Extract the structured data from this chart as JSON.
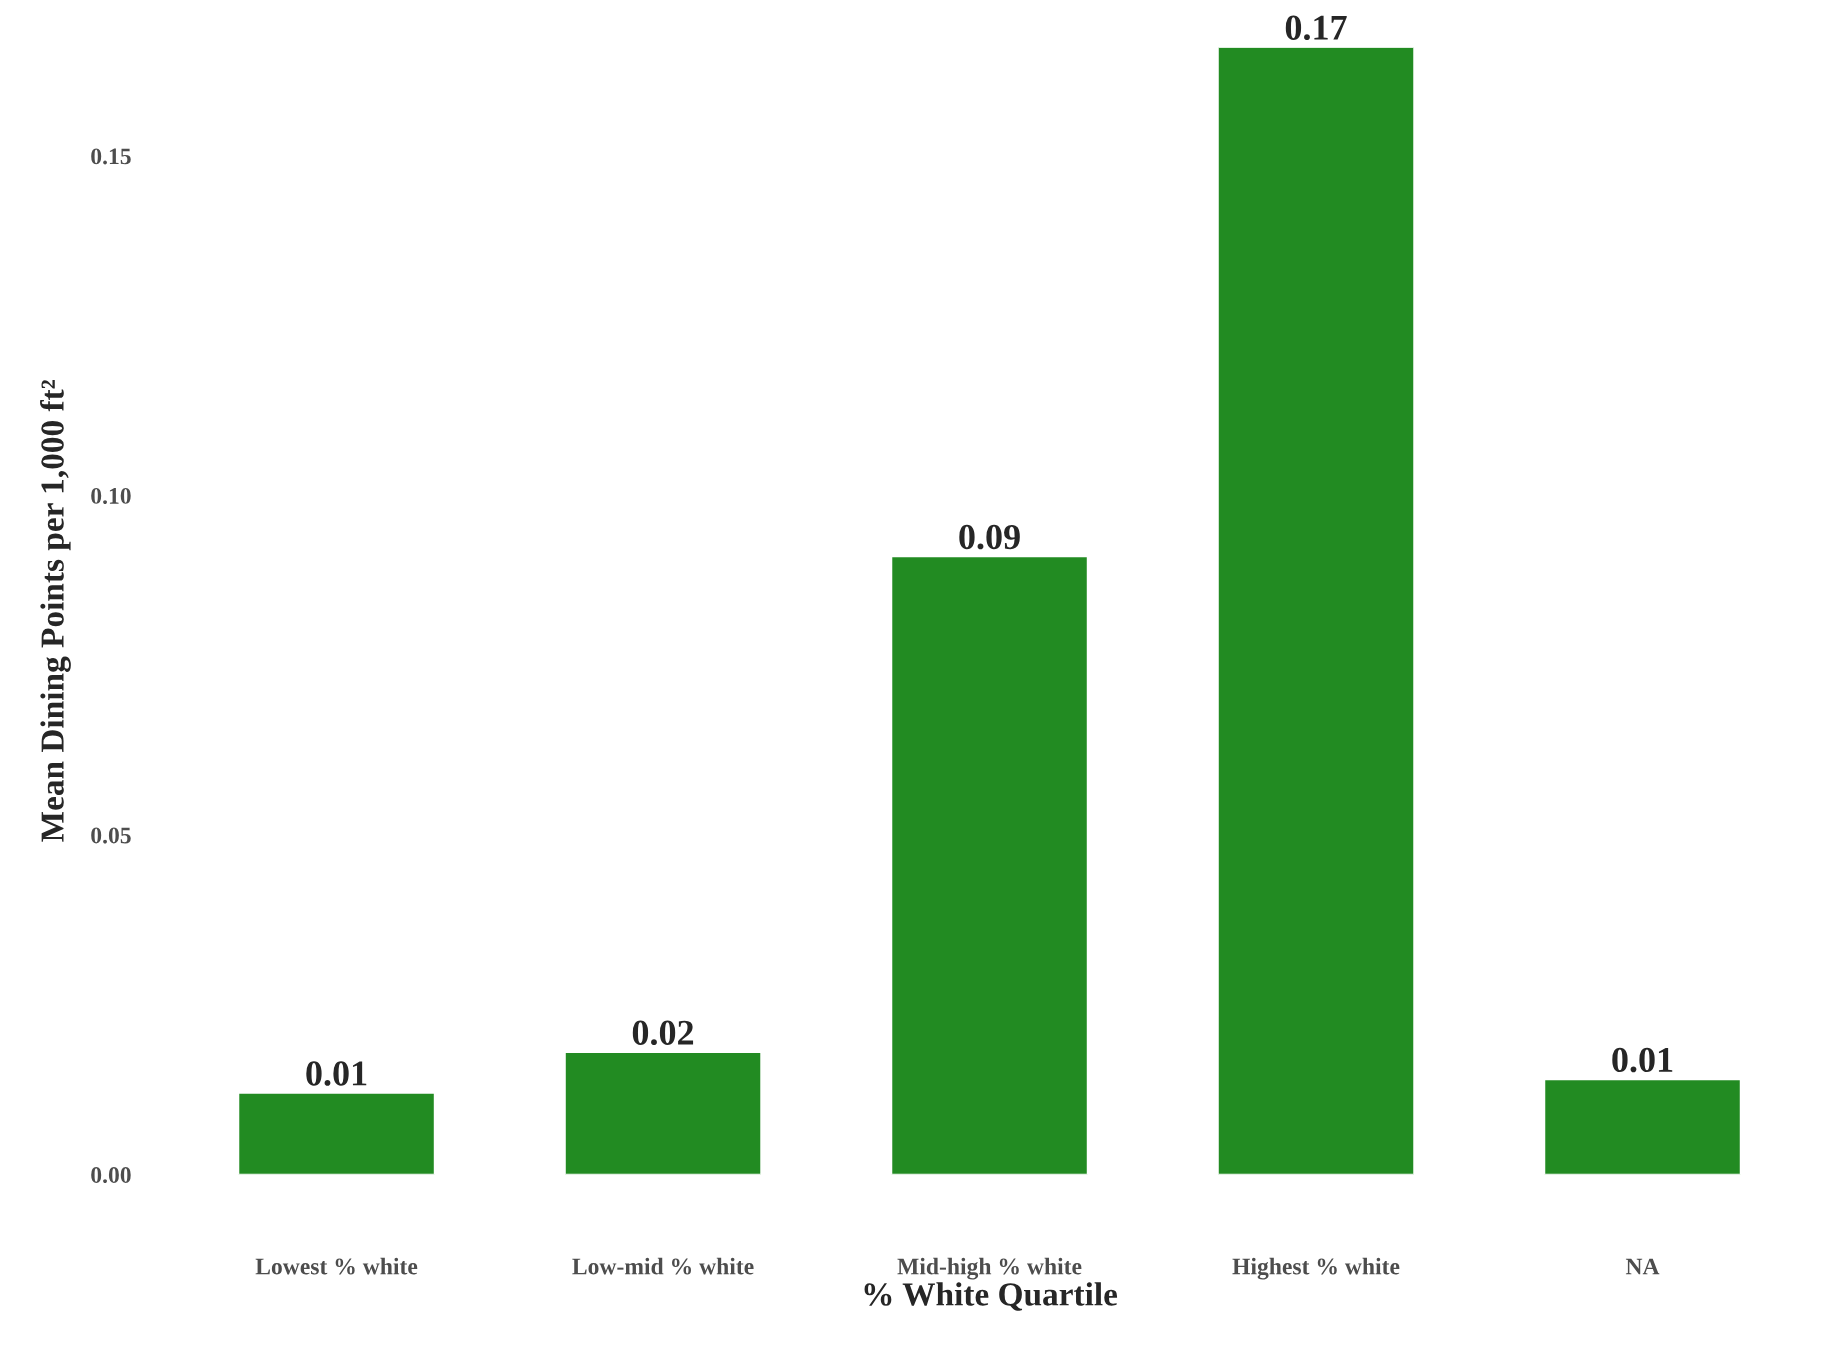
{
  "chart_data": {
    "type": "bar",
    "xlabel": "% White Quartile",
    "ylabel": "Mean Dining Points per 1,000 ft²",
    "categories": [
      "Lowest % white",
      "Low-mid % white",
      "Mid-high % white",
      "Highest % white",
      "NA"
    ],
    "values": [
      0.012,
      0.018,
      0.091,
      0.166,
      0.014
    ],
    "value_labels": [
      "0.01",
      "0.02",
      "0.09",
      "0.17",
      "0.01"
    ],
    "color": "#228b22",
    "ylim": [
      0,
      0.166
    ],
    "yticks": [
      {
        "value": 0,
        "label": "0.00"
      },
      {
        "value": 0.05,
        "label": "0.05"
      },
      {
        "value": 0.1,
        "label": "0.10"
      },
      {
        "value": 0.15,
        "label": "0.15"
      }
    ],
    "grid": false
  }
}
